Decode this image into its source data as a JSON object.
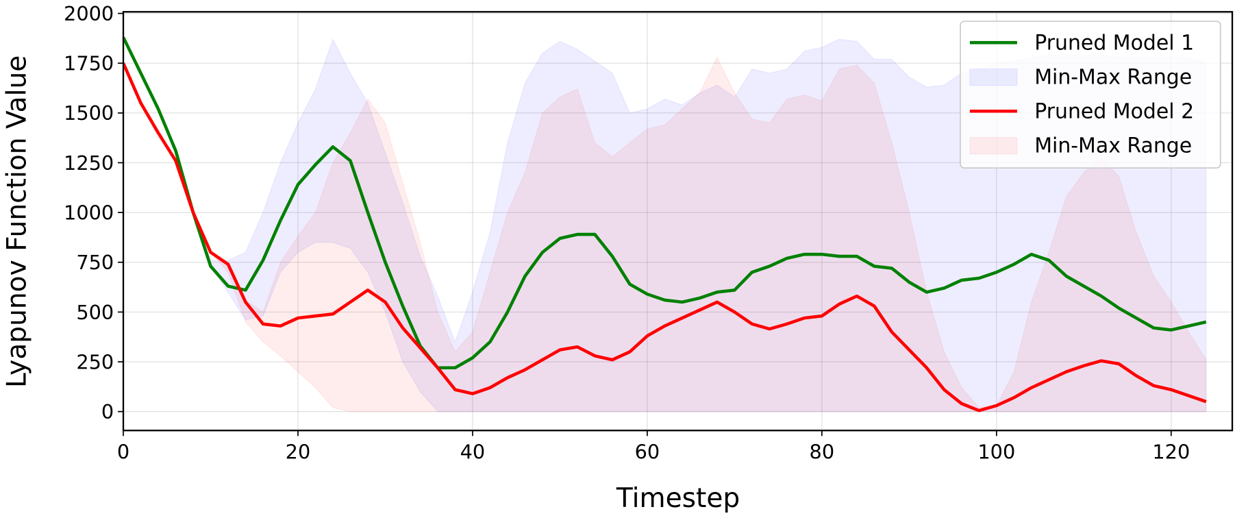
{
  "chart_data": {
    "type": "line",
    "xlabel": "Timestep",
    "ylabel": "Lyapunov Function Value",
    "x": [
      0,
      2,
      4,
      6,
      8,
      10,
      12,
      14,
      16,
      18,
      20,
      22,
      24,
      26,
      28,
      30,
      32,
      34,
      36,
      38,
      40,
      42,
      44,
      46,
      48,
      50,
      52,
      54,
      56,
      58,
      60,
      62,
      64,
      66,
      68,
      70,
      72,
      74,
      76,
      78,
      80,
      82,
      84,
      86,
      88,
      90,
      92,
      94,
      96,
      98,
      100,
      102,
      104,
      106,
      108,
      110,
      112,
      114,
      116,
      118,
      120,
      122,
      124
    ],
    "series": [
      {
        "name": "Pruned Model 1",
        "color": "#008000",
        "values": [
          1880,
          1700,
          1520,
          1310,
          1000,
          730,
          630,
          610,
          760,
          960,
          1140,
          1240,
          1330,
          1260,
          1000,
          750,
          530,
          330,
          220,
          220,
          270,
          350,
          500,
          680,
          800,
          870,
          890,
          890,
          780,
          640,
          590,
          560,
          550,
          570,
          600,
          610,
          700,
          730,
          770,
          790,
          790,
          780,
          780,
          730,
          720,
          650,
          600,
          620,
          660,
          670,
          700,
          740,
          790,
          760,
          680,
          630,
          580,
          520,
          470,
          420,
          410,
          430,
          450
        ]
      },
      {
        "name": "Pruned Model 2",
        "color": "#ff0000",
        "values": [
          1750,
          1550,
          1400,
          1260,
          1000,
          800,
          740,
          550,
          440,
          430,
          470,
          480,
          490,
          550,
          610,
          550,
          420,
          320,
          220,
          110,
          90,
          120,
          170,
          210,
          260,
          310,
          325,
          280,
          260,
          300,
          380,
          430,
          470,
          510,
          550,
          500,
          440,
          415,
          440,
          470,
          480,
          540,
          580,
          530,
          400,
          310,
          220,
          110,
          40,
          5,
          30,
          70,
          120,
          160,
          200,
          230,
          255,
          240,
          180,
          130,
          110,
          80,
          50
        ]
      }
    ],
    "ranges": [
      {
        "name": "Min-Max Range",
        "color": "#0000ff",
        "upper": [
          1880,
          1700,
          1520,
          1310,
          1000,
          760,
          760,
          800,
          1000,
          1250,
          1450,
          1620,
          1870,
          1700,
          1550,
          1300,
          1050,
          780,
          580,
          350,
          600,
          900,
          1350,
          1650,
          1800,
          1860,
          1820,
          1760,
          1700,
          1500,
          1520,
          1570,
          1540,
          1600,
          1640,
          1580,
          1720,
          1700,
          1720,
          1810,
          1830,
          1870,
          1860,
          1770,
          1770,
          1680,
          1630,
          1640,
          1700,
          1720,
          1750,
          1760,
          1780,
          1790,
          1790,
          1790,
          1790,
          1780,
          1780,
          1780,
          1780,
          1780,
          1750
        ],
        "lower": [
          1880,
          1700,
          1520,
          1310,
          1000,
          730,
          600,
          460,
          480,
          700,
          800,
          850,
          850,
          820,
          700,
          500,
          250,
          100,
          0,
          0,
          0,
          0,
          0,
          0,
          0,
          0,
          0,
          0,
          0,
          0,
          0,
          0,
          0,
          0,
          0,
          0,
          0,
          0,
          0,
          0,
          0,
          0,
          0,
          0,
          0,
          0,
          0,
          0,
          0,
          0,
          0,
          0,
          0,
          0,
          0,
          0,
          0,
          0,
          0,
          0,
          0,
          0,
          0
        ]
      },
      {
        "name": "Min-Max Range",
        "color": "#ff0000",
        "upper": [
          1750,
          1550,
          1400,
          1260,
          1000,
          800,
          740,
          560,
          500,
          750,
          880,
          1000,
          1250,
          1400,
          1570,
          1450,
          1150,
          850,
          500,
          300,
          400,
          700,
          1000,
          1200,
          1500,
          1580,
          1620,
          1350,
          1280,
          1350,
          1420,
          1440,
          1520,
          1600,
          1780,
          1600,
          1470,
          1450,
          1570,
          1590,
          1560,
          1720,
          1740,
          1650,
          1350,
          1000,
          600,
          300,
          120,
          20,
          30,
          200,
          550,
          800,
          1080,
          1200,
          1280,
          1180,
          900,
          680,
          550,
          400,
          260
        ],
        "lower": [
          1750,
          1550,
          1400,
          1260,
          1000,
          800,
          700,
          450,
          350,
          280,
          200,
          120,
          20,
          0,
          0,
          0,
          0,
          0,
          0,
          0,
          0,
          0,
          0,
          0,
          0,
          0,
          0,
          0,
          0,
          0,
          0,
          0,
          0,
          0,
          0,
          0,
          0,
          0,
          0,
          0,
          0,
          0,
          0,
          0,
          0,
          0,
          0,
          0,
          0,
          0,
          0,
          0,
          0,
          0,
          0,
          0,
          0,
          0,
          0,
          0,
          0,
          0,
          0
        ]
      }
    ],
    "xlim": [
      0,
      127
    ],
    "ylim": [
      -95,
      2008
    ],
    "xticks": [
      0,
      20,
      40,
      60,
      80,
      100,
      120
    ],
    "yticks": [
      0,
      250,
      500,
      750,
      1000,
      1250,
      1500,
      1750,
      2000
    ],
    "grid": true,
    "legend": "upper right"
  }
}
